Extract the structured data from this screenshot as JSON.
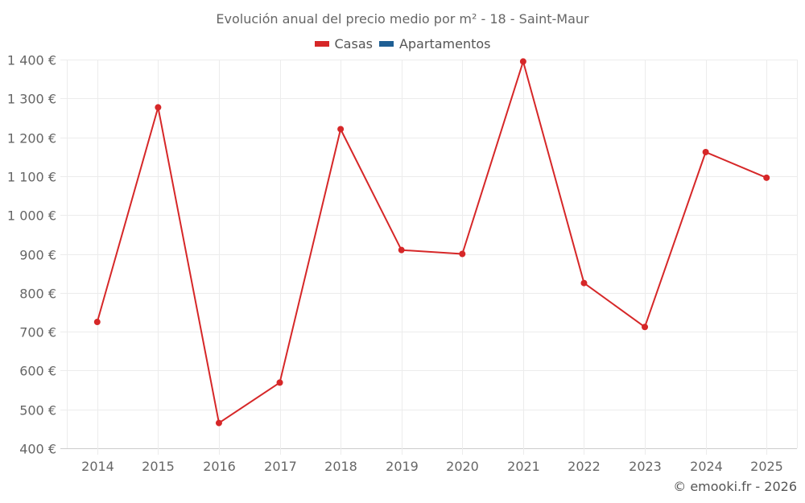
{
  "header": {
    "title": "Evolución anual del precio medio por m² - 18 - Saint-Maur"
  },
  "legend": [
    {
      "label": "Casas",
      "color": "#d62728"
    },
    {
      "label": "Apartamentos",
      "color": "#1f5f94"
    }
  ],
  "footer": {
    "credit": "© emooki.fr - 2026"
  },
  "chart_data": {
    "type": "line",
    "title": "Evolución anual del precio medio por m² - 18 - Saint-Maur",
    "xlabel": "",
    "ylabel": "",
    "categories": [
      "2014",
      "2015",
      "2016",
      "2017",
      "2018",
      "2019",
      "2020",
      "2021",
      "2022",
      "2023",
      "2024",
      "2025"
    ],
    "series": [
      {
        "name": "Casas",
        "color": "#d62728",
        "values": [
          725,
          1277,
          465,
          569,
          1221,
          910,
          900,
          1395,
          825,
          712,
          1162,
          1096
        ]
      },
      {
        "name": "Apartamentos",
        "color": "#1f5f94",
        "values": []
      }
    ],
    "ylim": [
      400,
      1400
    ],
    "yticks": [
      400,
      500,
      600,
      700,
      800,
      900,
      1000,
      1100,
      1200,
      1300,
      1400
    ],
    "ytick_labels": [
      "400 €",
      "500 €",
      "600 €",
      "700 €",
      "800 €",
      "900 €",
      "1 000 €",
      "1 100 €",
      "1 200 €",
      "1 300 €",
      "1 400 €"
    ],
    "grid": true,
    "legend_position": "top"
  }
}
